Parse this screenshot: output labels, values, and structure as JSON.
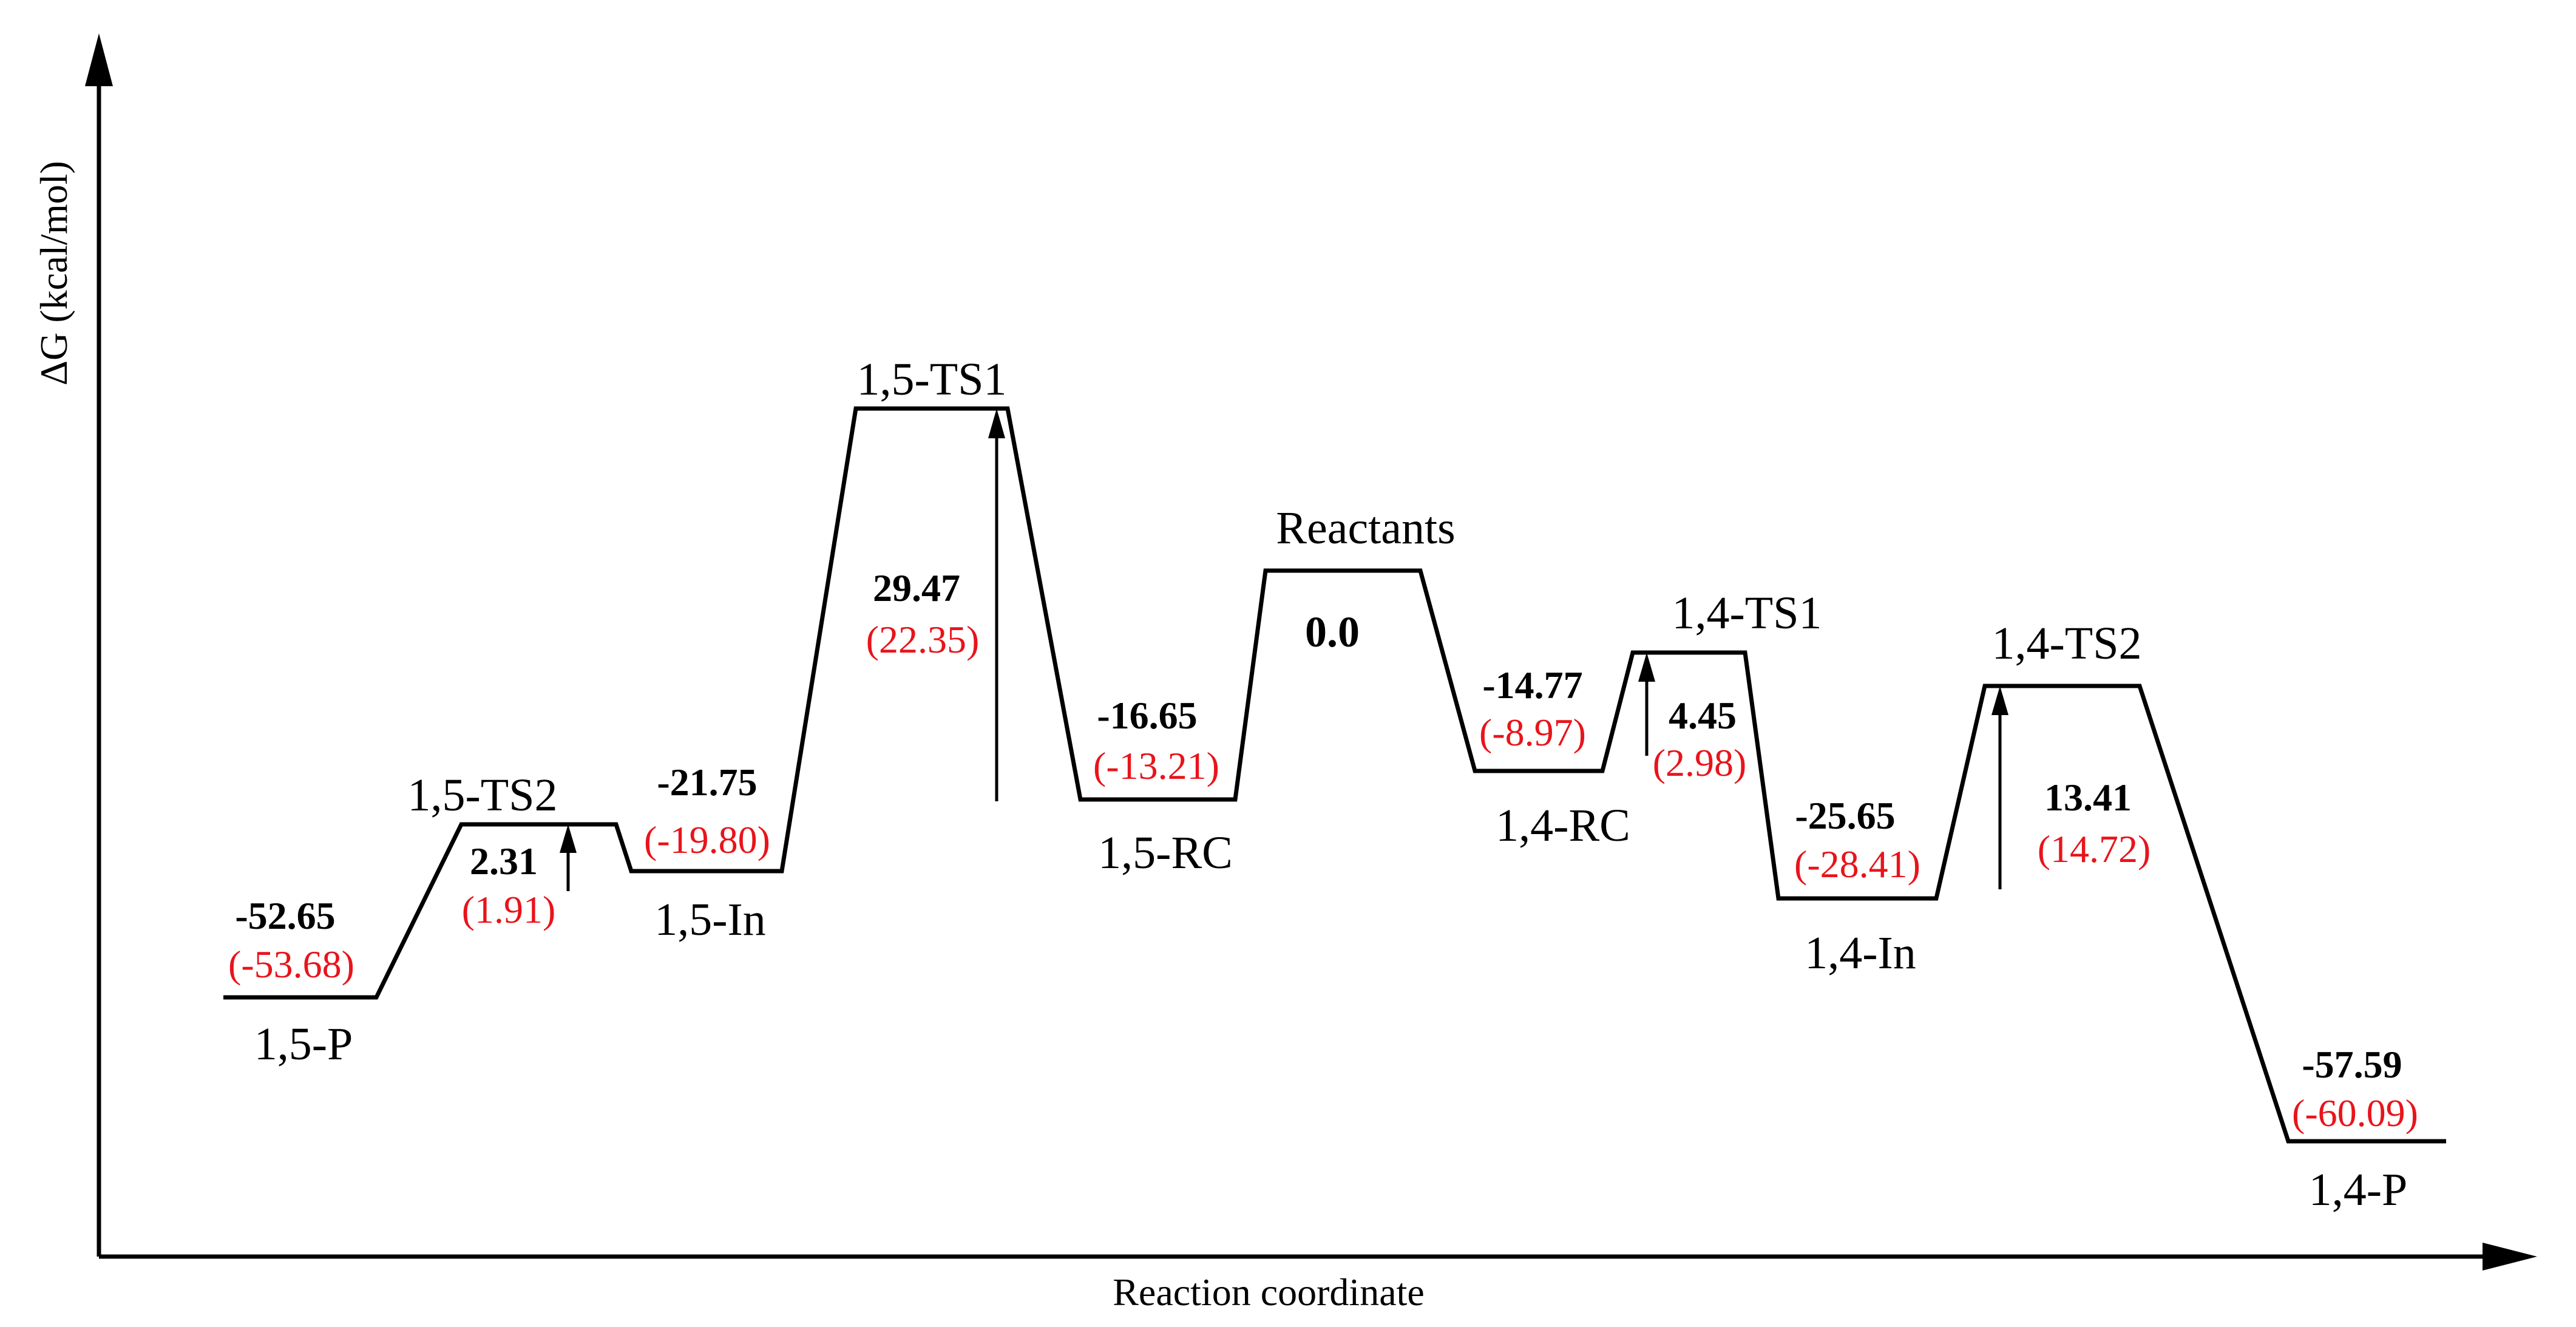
{
  "axes": {
    "y_title": "ΔG (kcal/mol)",
    "x_title": "Reaction coordinate"
  },
  "colors": {
    "line": "#000000",
    "secondary_value": "#e8141b"
  },
  "states": [
    {
      "id": "1,5-P",
      "label": "1,5-P",
      "value": "-52.65",
      "alt_value": "(-53.68)"
    },
    {
      "id": "1,5-TS2",
      "label": "1,5-TS2"
    },
    {
      "id": "1,5-In",
      "label": "1,5-In",
      "value": "-21.75",
      "alt_value": "(-19.80)"
    },
    {
      "id": "1,5-TS1",
      "label": "1,5-TS1"
    },
    {
      "id": "1,5-RC",
      "label": "1,5-RC",
      "value": "-16.65",
      "alt_value": "(-13.21)"
    },
    {
      "id": "Reactants",
      "label": "Reactants",
      "value": "0.0"
    },
    {
      "id": "1,4-RC",
      "label": "1,4-RC",
      "value": "-14.77",
      "alt_value": "(-8.97)"
    },
    {
      "id": "1,4-TS1",
      "label": "1,4-TS1"
    },
    {
      "id": "1,4-In",
      "label": "1,4-In",
      "value": "-25.65",
      "alt_value": "(-28.41)"
    },
    {
      "id": "1,4-TS2",
      "label": "1,4-TS2"
    },
    {
      "id": "1,4-P",
      "label": "1,4-P",
      "value": "-57.59",
      "alt_value": "(-60.09)"
    }
  ],
  "barriers": [
    {
      "from": "1,5-In",
      "to": "1,5-TS2",
      "value": "2.31",
      "alt_value": "(1.91)"
    },
    {
      "from": "1,5-RC",
      "to": "1,5-TS1",
      "value": "29.47",
      "alt_value": "(22.35)"
    },
    {
      "from": "1,4-RC",
      "to": "1,4-TS1",
      "value": "4.45",
      "alt_value": "(2.98)"
    },
    {
      "from": "1,4-In",
      "to": "1,4-TS2",
      "value": "13.41",
      "alt_value": "(14.72)"
    }
  ]
}
